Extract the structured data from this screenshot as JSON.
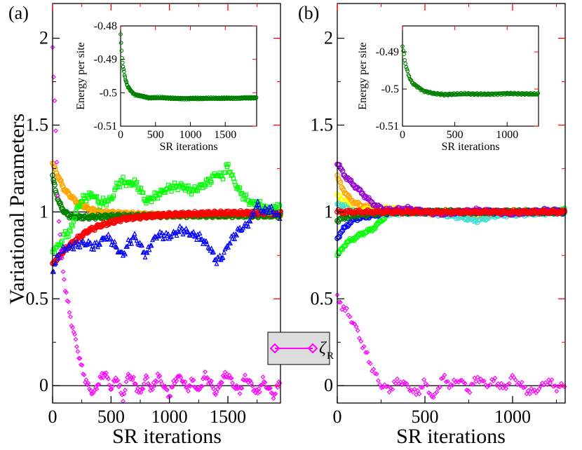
{
  "chart_data": [
    {
      "panel": "(a)",
      "type": "scatter",
      "xlabel": "SR iterations",
      "ylabel": "Variational Parameters",
      "xlim": [
        0,
        1950
      ],
      "ylim": [
        -0.1,
        2.2
      ],
      "xticks": [
        0,
        500,
        1000,
        1500
      ],
      "yticks": [
        0,
        0.5,
        1,
        1.5,
        2
      ],
      "ytick_labels": [
        "0",
        "0.5",
        "1",
        "1.5",
        "2"
      ],
      "reference_lines": [
        0,
        1
      ],
      "series": [
        {
          "name": "orange",
          "color": "#ffa500",
          "marker": "circle",
          "x": [
            0,
            50,
            100,
            200,
            300,
            400,
            600,
            800,
            1000,
            1500,
            1950
          ],
          "y": [
            1.28,
            1.2,
            1.13,
            1.06,
            1.02,
            1.0,
            0.99,
            0.985,
            0.98,
            0.98,
            0.98
          ]
        },
        {
          "name": "dark green",
          "color": "#008000",
          "marker": "circle",
          "x": [
            0,
            50,
            100,
            150,
            200,
            300,
            500,
            1000,
            1500,
            1950
          ],
          "y": [
            1.2,
            1.06,
            1.0,
            0.975,
            0.97,
            0.97,
            0.975,
            0.98,
            0.98,
            0.98
          ]
        },
        {
          "name": "red",
          "color": "#ff0000",
          "marker": "circle",
          "x": [
            0,
            50,
            100,
            200,
            300,
            400,
            500,
            600,
            800,
            1000,
            1200,
            1500,
            1950
          ],
          "y": [
            0.7,
            0.74,
            0.78,
            0.84,
            0.89,
            0.92,
            0.94,
            0.96,
            0.975,
            0.985,
            0.99,
            0.995,
            0.995
          ]
        },
        {
          "name": "light green",
          "color": "#00ff00",
          "marker": "square",
          "x": [
            0,
            50,
            100,
            150,
            200,
            250,
            300,
            350,
            400,
            450,
            500,
            550,
            600,
            650,
            700,
            750,
            800,
            850,
            900,
            1000,
            1100,
            1200,
            1300,
            1350,
            1400,
            1450,
            1500,
            1550,
            1600,
            1650,
            1700,
            1750,
            1800,
            1850,
            1900,
            1950
          ],
          "y": [
            0.78,
            0.8,
            0.87,
            0.88,
            1.0,
            1.07,
            1.09,
            1.1,
            1.05,
            1.06,
            1.07,
            1.15,
            1.18,
            1.16,
            1.17,
            1.13,
            1.06,
            1.08,
            1.1,
            1.14,
            1.15,
            1.12,
            1.16,
            1.18,
            1.22,
            1.2,
            1.27,
            1.18,
            1.12,
            1.08,
            1.05,
            1.05,
            1.03,
            1.0,
            1.03,
            1.02
          ]
        },
        {
          "name": "blue",
          "color": "#0000ff",
          "marker": "triangle",
          "x": [
            0,
            50,
            100,
            150,
            200,
            250,
            300,
            350,
            400,
            450,
            500,
            550,
            600,
            650,
            700,
            750,
            800,
            850,
            900,
            1000,
            1100,
            1200,
            1250,
            1300,
            1350,
            1400,
            1450,
            1500,
            1550,
            1600,
            1650,
            1700,
            1750,
            1800,
            1850,
            1900,
            1950
          ],
          "y": [
            0.66,
            0.75,
            0.79,
            0.8,
            0.81,
            0.82,
            0.82,
            0.8,
            0.82,
            0.86,
            0.84,
            0.79,
            0.75,
            0.82,
            0.86,
            0.81,
            0.75,
            0.83,
            0.87,
            0.86,
            0.9,
            0.87,
            0.86,
            0.83,
            0.79,
            0.72,
            0.74,
            0.81,
            0.86,
            0.9,
            0.92,
            0.96,
            1.05,
            1.0,
            1.02,
            1.0,
            0.97
          ]
        },
        {
          "name": "zeta_R",
          "color": "#ff00ff",
          "marker": "diamond",
          "x": [
            0,
            25,
            50,
            75,
            100,
            150,
            200,
            250,
            300,
            350,
            400,
            450,
            500,
            550,
            600,
            650,
            700,
            750,
            800,
            850,
            900,
            950,
            1000,
            1050,
            1100,
            1150,
            1200,
            1250,
            1300,
            1350,
            1400,
            1450,
            1500,
            1550,
            1600,
            1650,
            1700,
            1750,
            1800,
            1850,
            1900,
            1950
          ],
          "y": [
            1.95,
            1.5,
            1.0,
            0.75,
            0.6,
            0.4,
            0.25,
            0.1,
            0.0,
            -0.05,
            0.03,
            0.08,
            -0.02,
            0.05,
            -0.08,
            0.07,
            0.02,
            -0.05,
            0.05,
            -0.03,
            0.06,
            0.0,
            -0.06,
            0.04,
            0.05,
            -0.02,
            0.03,
            -0.04,
            0.06,
            0.02,
            -0.05,
            0.04,
            0.07,
            0.0,
            -0.03,
            0.05,
            0.01,
            -0.05,
            0.03,
            -0.02,
            -0.06,
            0.05
          ]
        }
      ],
      "legend": {
        "label": "ζ",
        "subscript": "R",
        "placement": "bottom-right"
      },
      "inset": {
        "xlabel": "SR iterations",
        "ylabel": "Energy per site",
        "xlim": [
          0,
          1950
        ],
        "ylim": [
          -0.51,
          -0.48
        ],
        "xticks": [
          0,
          500,
          1000,
          1500
        ],
        "yticks": [
          -0.48,
          -0.49,
          -0.5,
          -0.51
        ],
        "ytick_labels": [
          "-0.48",
          "-0.49",
          "-0.5",
          "-0.51"
        ],
        "color": "#008000",
        "x": [
          0,
          15,
          30,
          50,
          75,
          100,
          150,
          200,
          300,
          400,
          600,
          800,
          1000,
          1300,
          1600,
          1950
        ],
        "y": [
          -0.4825,
          -0.488,
          -0.4915,
          -0.494,
          -0.4965,
          -0.498,
          -0.4995,
          -0.5005,
          -0.501,
          -0.5015,
          -0.5015,
          -0.5017,
          -0.5017,
          -0.5017,
          -0.5016,
          -0.5015
        ]
      }
    },
    {
      "panel": "(b)",
      "type": "scatter",
      "xlabel": "SR iterations",
      "ylabel": "",
      "xlim": [
        0,
        1300
      ],
      "ylim": [
        -0.1,
        2.2
      ],
      "xticks": [
        0,
        500,
        1000
      ],
      "yticks": [
        0,
        0.5,
        1,
        1.5,
        2
      ],
      "ytick_labels": [
        "0",
        "0.5",
        "1",
        "1.5",
        "2"
      ],
      "reference_lines": [
        0,
        1
      ],
      "series": [
        {
          "name": "green",
          "color": "#00ff00",
          "marker": "circle",
          "x": [
            0,
            50,
            100,
            150,
            200,
            250,
            300,
            400,
            500,
            700,
            1000,
            1300
          ],
          "y": [
            0.75,
            0.82,
            0.85,
            0.88,
            0.9,
            0.95,
            1.0,
            1.0,
            1.0,
            1.0,
            1.0,
            1.01
          ]
        },
        {
          "name": "orange",
          "color": "#ffa500",
          "marker": "circle",
          "x": [
            0,
            50,
            100,
            200,
            300,
            400,
            500,
            600,
            700,
            800,
            900,
            1000,
            1100,
            1200,
            1300
          ],
          "y": [
            1.2,
            1.1,
            1.05,
            1.02,
            1.0,
            1.0,
            1.0,
            0.99,
            0.99,
            0.98,
            0.99,
            1.0,
            1.0,
            1.0,
            1.0
          ]
        },
        {
          "name": "yellow",
          "color": "#ffff00",
          "marker": "circle",
          "x": [
            0,
            100,
            200,
            300,
            500,
            700,
            900,
            1100,
            1300
          ],
          "y": [
            1.1,
            1.0,
            1.02,
            1.02,
            1.0,
            1.0,
            0.99,
            1.0,
            1.0
          ]
        },
        {
          "name": "cyan",
          "color": "#40e0d0",
          "marker": "circle",
          "x": [
            0,
            100,
            200,
            300,
            500,
            700,
            800,
            900,
            1100,
            1300
          ],
          "y": [
            1.05,
            1.0,
            0.98,
            0.99,
            1.0,
            0.97,
            0.95,
            0.98,
            0.99,
            1.0
          ]
        },
        {
          "name": "blue",
          "color": "#0000ff",
          "marker": "circle",
          "x": [
            0,
            50,
            100,
            200,
            300,
            500,
            700,
            1000,
            1300
          ],
          "y": [
            0.85,
            0.92,
            0.96,
            0.98,
            1.0,
            1.0,
            1.0,
            1.0,
            1.0
          ]
        },
        {
          "name": "dark green",
          "color": "#008000",
          "marker": "circle",
          "x": [
            0,
            50,
            100,
            200,
            300,
            500,
            800,
            1100,
            1300
          ],
          "y": [
            0.95,
            0.97,
            0.98,
            0.99,
            1.0,
            1.0,
            1.0,
            1.0,
            1.0
          ]
        },
        {
          "name": "purple",
          "color": "#9400d3",
          "marker": "circle",
          "x": [
            0,
            50,
            100,
            150,
            200,
            250,
            300,
            400,
            500,
            600,
            700,
            800,
            900,
            1000,
            1100,
            1200,
            1300
          ],
          "y": [
            1.28,
            1.2,
            1.15,
            1.1,
            1.05,
            1.02,
            1.01,
            1.02,
            1.0,
            0.99,
            1.0,
            1.01,
            1.0,
            0.99,
            1.0,
            1.01,
            1.0
          ]
        },
        {
          "name": "red",
          "color": "#ff0000",
          "marker": "circle",
          "x": [
            0,
            100,
            200,
            300,
            500,
            700,
            1000,
            1300
          ],
          "y": [
            1.0,
            1.0,
            1.0,
            1.0,
            1.0,
            1.0,
            1.0,
            1.0
          ]
        },
        {
          "name": "zeta_R",
          "color": "#ff00ff",
          "marker": "diamond",
          "x": [
            0,
            50,
            100,
            150,
            200,
            250,
            300,
            350,
            400,
            450,
            500,
            550,
            600,
            650,
            700,
            750,
            800,
            850,
            900,
            950,
            1000,
            1050,
            1100,
            1150,
            1200,
            1250,
            1300
          ],
          "y": [
            0.5,
            0.43,
            0.35,
            0.22,
            0.1,
            0.0,
            -0.02,
            0.03,
            0.0,
            -0.05,
            0.02,
            -0.08,
            0.05,
            0.0,
            0.04,
            -0.03,
            0.05,
            0.0,
            0.03,
            -0.02,
            0.05,
            0.0,
            -0.04,
            -0.02,
            0.03,
            -0.01,
            0.0
          ]
        }
      ],
      "inset": {
        "xlabel": "SR iterations",
        "ylabel": "Energy per site",
        "xlim": [
          0,
          1300
        ],
        "ylim": [
          -0.51,
          -0.483
        ],
        "xticks": [
          0,
          500,
          1000
        ],
        "yticks": [
          -0.49,
          -0.5,
          -0.51
        ],
        "ytick_labels": [
          "-0.49",
          "-0.5",
          "-0.51"
        ],
        "color": "#008000",
        "x": [
          0,
          15,
          30,
          50,
          75,
          100,
          150,
          200,
          300,
          400,
          600,
          800,
          1000,
          1300
        ],
        "y": [
          -0.4885,
          -0.491,
          -0.4935,
          -0.4955,
          -0.4975,
          -0.4985,
          -0.4995,
          -0.5005,
          -0.5012,
          -0.5015,
          -0.5013,
          -0.5014,
          -0.5012,
          -0.5014
        ]
      }
    }
  ]
}
